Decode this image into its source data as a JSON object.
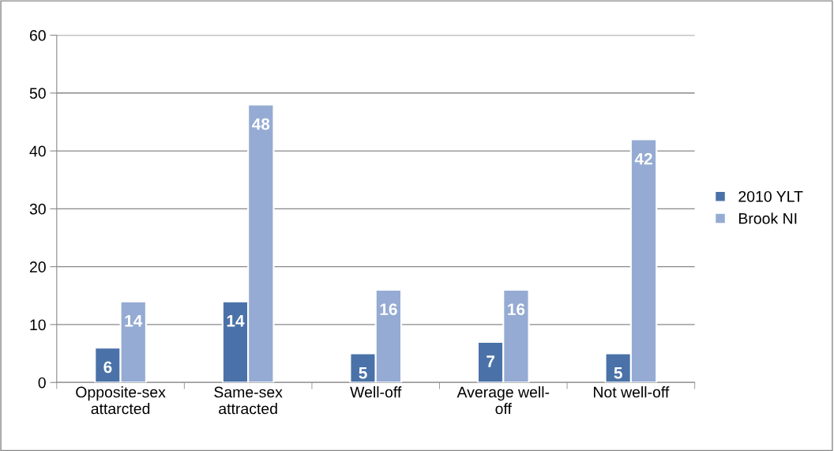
{
  "chart_data": {
    "type": "bar",
    "categories": [
      "Opposite-sex\nattarcted",
      "Same-sex\nattracted",
      "Well-off",
      "Average well-\noff",
      "Not well-off"
    ],
    "series": [
      {
        "name": "2010 YLT",
        "color": "#4a72a8",
        "values": [
          6,
          14,
          5,
          7,
          5
        ]
      },
      {
        "name": "Brook NI",
        "color": "#95abd3",
        "values": [
          14,
          48,
          16,
          16,
          42
        ]
      }
    ],
    "ylim": [
      0,
      60
    ],
    "yticks": [
      0,
      10,
      20,
      30,
      40,
      50,
      60
    ],
    "grid": "y",
    "legend": "right",
    "data_labels": true
  }
}
